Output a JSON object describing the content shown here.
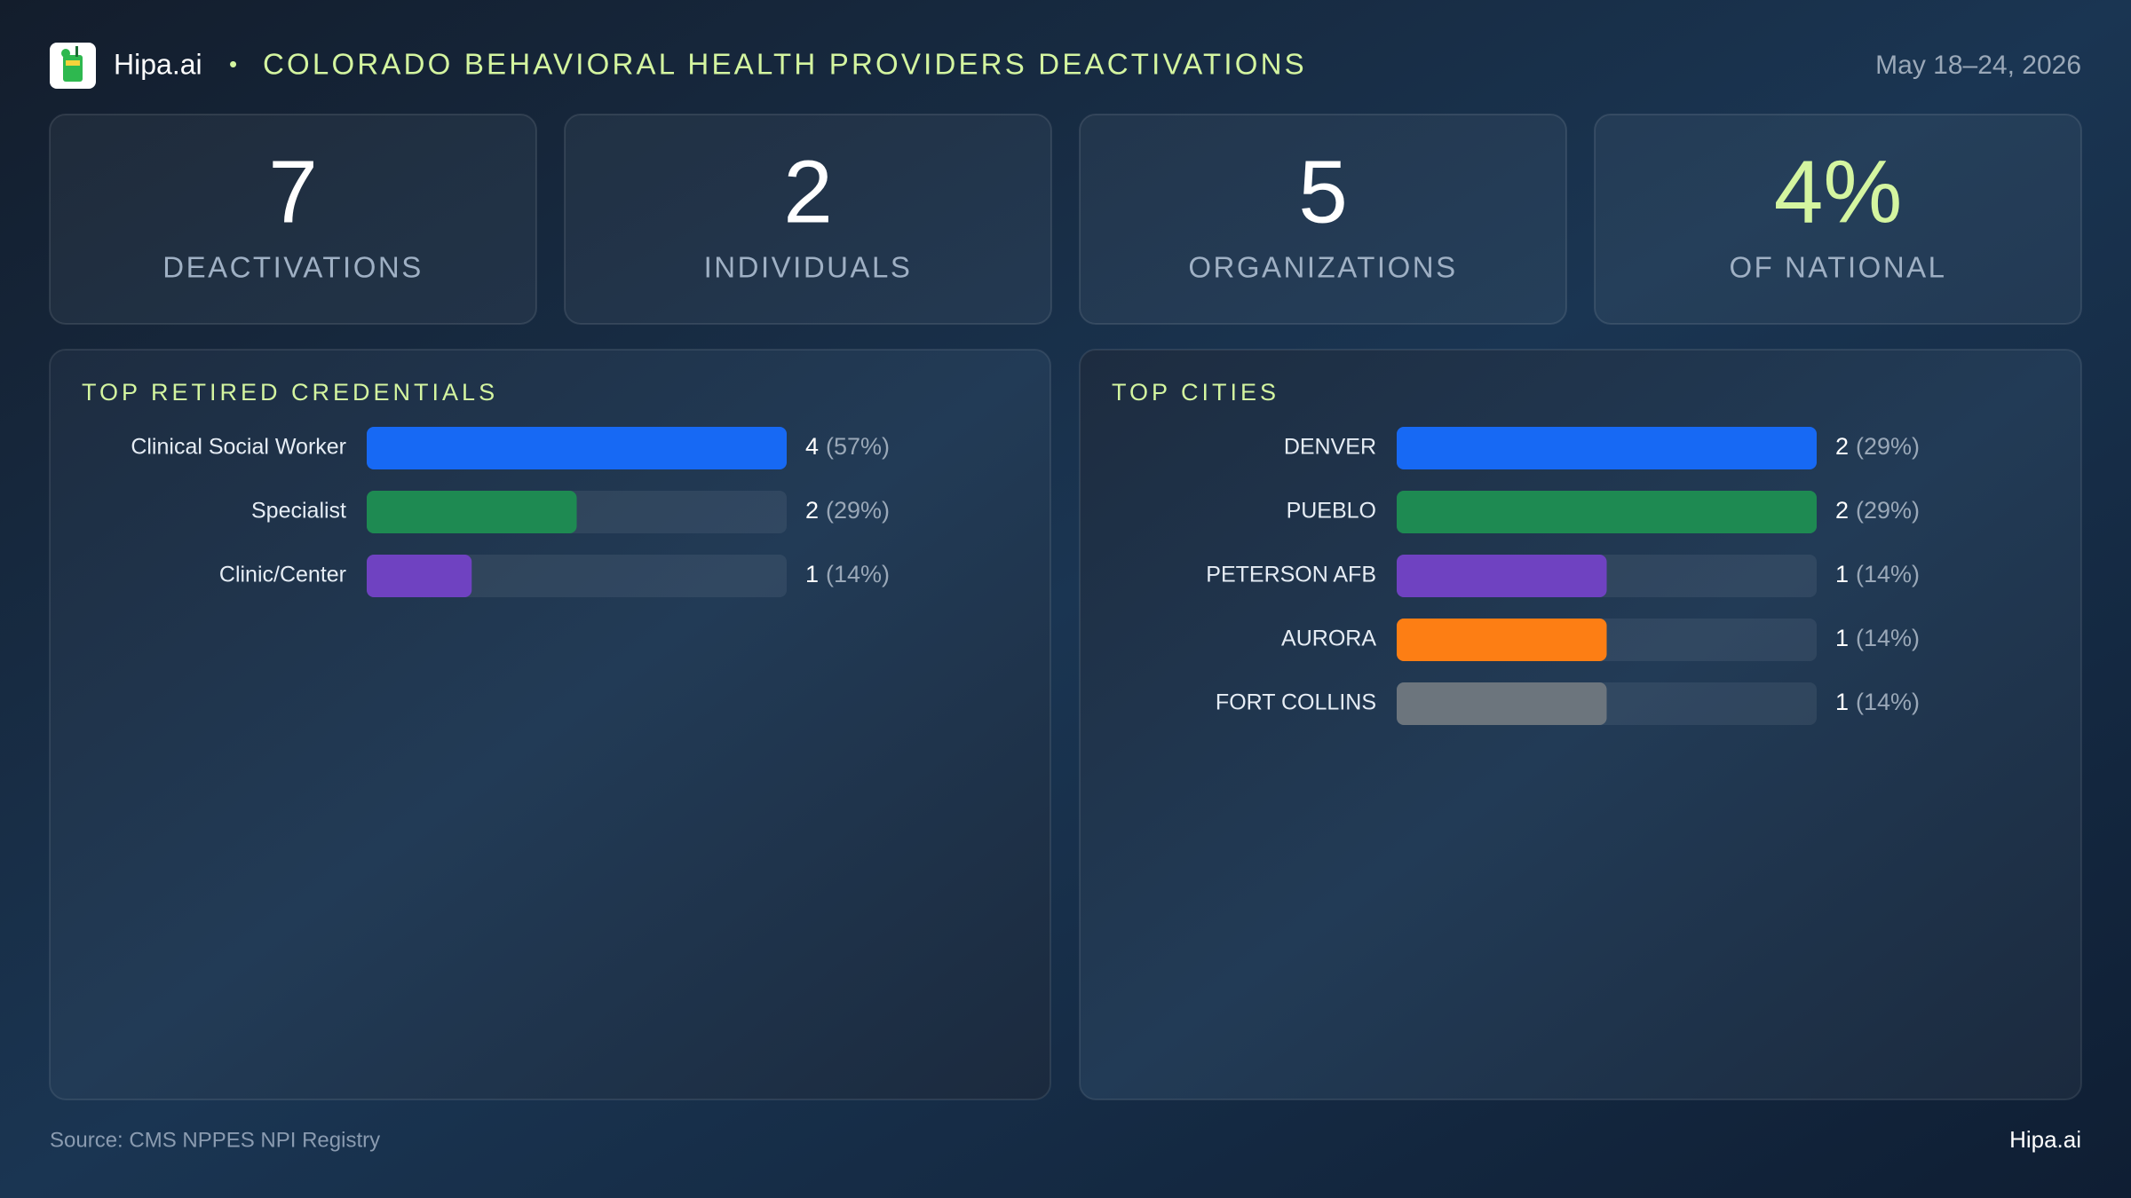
{
  "header": {
    "brand": "Hipa.ai",
    "separator": "•",
    "title": "COLORADO BEHAVIORAL HEALTH PROVIDERS DEACTIVATIONS",
    "date": "May 18–24, 2026"
  },
  "kpis": [
    {
      "value": 7,
      "label": "DEACTIVATIONS"
    },
    {
      "value": 2,
      "label": "INDIVIDUALS"
    },
    {
      "value": 5,
      "label": "ORGANIZATIONS"
    },
    {
      "value": "4%",
      "label": "OF NATIONAL"
    }
  ],
  "chart_data": [
    {
      "type": "bar",
      "orientation": "horizontal",
      "title": "TOP RETIRED CREDENTIALS",
      "categories": [
        "Clinical Social Worker",
        "Specialist",
        "Clinic/Center"
      ],
      "values": [
        4,
        2,
        1
      ],
      "shares": [
        "(57%)",
        "(29%)",
        "(14%)"
      ],
      "colors": [
        "#1769f4",
        "#1e8a52",
        "#6f42c1"
      ],
      "xlim": [
        0,
        4
      ]
    },
    {
      "type": "bar",
      "orientation": "horizontal",
      "title": "TOP CITIES",
      "categories": [
        "DENVER",
        "PUEBLO",
        "PETERSON AFB",
        "AURORA",
        "FORT COLLINS"
      ],
      "values": [
        2,
        2,
        1,
        1,
        1
      ],
      "shares": [
        "(29%)",
        "(29%)",
        "(14%)",
        "(14%)",
        "(14%)"
      ],
      "colors": [
        "#1769f4",
        "#1e8a52",
        "#6f42c1",
        "#fd7e14",
        "#6c757d"
      ],
      "xlim": [
        0,
        2
      ]
    }
  ],
  "footer": {
    "source": "Source: CMS NPPES NPI Registry",
    "brand": "Hipa.ai"
  }
}
